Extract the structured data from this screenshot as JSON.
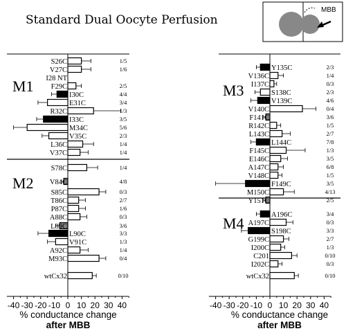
{
  "title": "Standard Dual Oocyte Perfusion",
  "inset": {
    "label": "MBB"
  },
  "colors": {
    "black": "#000000",
    "white": "#ffffff",
    "gray": "#7f7f7f",
    "bar_hatched": "#ffffff"
  },
  "chart_data": [
    {
      "type": "bar",
      "orientation": "horizontal",
      "panel": "left",
      "xlim": [
        -45,
        45
      ],
      "xticks": [
        -40,
        -30,
        -20,
        -10,
        0,
        10,
        20,
        30,
        40
      ],
      "xlabel": "% conductance change",
      "xlabel_line2": "after MBB",
      "segments": [
        "M1",
        "M2"
      ],
      "rows": [
        {
          "label": "S26C",
          "value": 10,
          "err": 7,
          "fill": "white",
          "frac": "1/5"
        },
        {
          "label": "V27C",
          "value": 10,
          "err": 7,
          "fill": "white",
          "frac": "1/6"
        },
        {
          "label": "I28 NT",
          "value": null,
          "err": null,
          "fill": "none",
          "frac": ""
        },
        {
          "label": "F29C",
          "value": 6,
          "err": 4,
          "fill": "white",
          "frac": "2/5"
        },
        {
          "label": "I30C",
          "value": -8,
          "err": 4,
          "fill": "black",
          "frac": "4/4"
        },
        {
          "label": "E31C",
          "value": -15,
          "err": 7,
          "fill": "white",
          "frac": "3/4"
        },
        {
          "label": "R32C",
          "value": 19,
          "err": 20,
          "fill": "white",
          "frac": "1/3"
        },
        {
          "label": "I33C",
          "value": -18,
          "err": 5,
          "fill": "black",
          "frac": "3/5"
        },
        {
          "label": "M34C",
          "value": -30,
          "err": 10,
          "fill": "white",
          "frac": "5/6"
        },
        {
          "label": "V35C",
          "value": -14,
          "err": 5,
          "fill": "white",
          "frac": "2/3"
        },
        {
          "label": "L36C",
          "value": 11,
          "err": 8,
          "fill": "white",
          "frac": "1/4"
        },
        {
          "label": "V37C",
          "value": 9,
          "err": 6,
          "fill": "white",
          "frac": "1/4"
        },
        {
          "label": "S78C",
          "value": 14,
          "err": 8,
          "fill": "white",
          "frac": "1/4"
        },
        {
          "label": "V84C",
          "value": -3,
          "err": 2,
          "fill": "gray",
          "frac": "4/8"
        },
        {
          "label": "S85C",
          "value": 23,
          "err": 5,
          "fill": "white",
          "frac": "0/3"
        },
        {
          "label": "T86C",
          "value": 8,
          "err": 5,
          "fill": "white",
          "frac": "2/7"
        },
        {
          "label": "P87C",
          "value": 8,
          "err": 5,
          "fill": "white",
          "frac": "1/6"
        },
        {
          "label": "A88C",
          "value": 9,
          "err": 5,
          "fill": "white",
          "frac": "0/3"
        },
        {
          "label": "L89C",
          "value": -6,
          "err": 3,
          "fill": "gray",
          "frac": "3/6"
        },
        {
          "label": "L90C",
          "value": -14,
          "err": 8,
          "fill": "black",
          "frac": "3/3"
        },
        {
          "label": "V91C",
          "value": -9,
          "err": 6,
          "fill": "white",
          "frac": "1/3"
        },
        {
          "label": "A92C",
          "value": 9,
          "err": 6,
          "fill": "white",
          "frac": "1/4"
        },
        {
          "label": "M93C",
          "value": 23,
          "err": 5,
          "fill": "white",
          "frac": "0/4"
        },
        {
          "label": "wtCx32",
          "value": 18,
          "err": 3,
          "fill": "white",
          "frac": "0/10"
        }
      ]
    },
    {
      "type": "bar",
      "orientation": "horizontal",
      "panel": "right",
      "xlim": [
        -45,
        45
      ],
      "xticks": [
        -40,
        -30,
        -20,
        -10,
        0,
        10,
        20,
        30,
        40
      ],
      "xlabel": "% conductance change",
      "xlabel_line2": "after MBB",
      "segments": [
        "M3",
        "M4"
      ],
      "rows": [
        {
          "label": "Y135C",
          "value": -7,
          "err": 3,
          "fill": "black",
          "frac": "2/3"
        },
        {
          "label": "V136C",
          "value": 6,
          "err": 4,
          "fill": "white",
          "frac": "1/4"
        },
        {
          "label": "I137C",
          "value": 3,
          "err": 2,
          "fill": "white",
          "frac": "0/3"
        },
        {
          "label": "S138C",
          "value": -7,
          "err": 4,
          "fill": "white",
          "frac": "2/3"
        },
        {
          "label": "V139C",
          "value": -9,
          "err": 5,
          "fill": "black",
          "frac": "4/6"
        },
        {
          "label": "V140C",
          "value": 24,
          "err": 10,
          "fill": "white",
          "frac": "0/4"
        },
        {
          "label": "F141C",
          "value": -3,
          "err": 2,
          "fill": "gray",
          "frac": "3/6"
        },
        {
          "label": "R142C",
          "value": 5,
          "err": 3,
          "fill": "white",
          "frac": "1/5"
        },
        {
          "label": "L143C",
          "value": 9,
          "err": 6,
          "fill": "white",
          "frac": "2/7"
        },
        {
          "label": "L144C",
          "value": -10,
          "err": 4,
          "fill": "black",
          "frac": "7/8"
        },
        {
          "label": "F145C",
          "value": 12,
          "err": 14,
          "fill": "white",
          "frac": "1/3"
        },
        {
          "label": "E146C",
          "value": 8,
          "err": 5,
          "fill": "white",
          "frac": "3/5"
        },
        {
          "label": "A147C",
          "value": 6,
          "err": 4,
          "fill": "white",
          "frac": "6/8"
        },
        {
          "label": "V148C",
          "value": 6,
          "err": 3,
          "fill": "white",
          "frac": "1/5"
        },
        {
          "label": "F149C",
          "value": -18,
          "err": 22,
          "fill": "black",
          "frac": "3/5"
        },
        {
          "label": "M150C",
          "value": 10,
          "err": 8,
          "fill": "white",
          "frac": "4/13"
        },
        {
          "label": "Y151C",
          "value": -3,
          "err": 2,
          "fill": "gray",
          "frac": "2/5"
        },
        {
          "label": "A196C",
          "value": -7,
          "err": 3,
          "fill": "black",
          "frac": "3/4"
        },
        {
          "label": "A197C",
          "value": 12,
          "err": 5,
          "fill": "white",
          "frac": "0/3"
        },
        {
          "label": "S198C",
          "value": -16,
          "err": 5,
          "fill": "black",
          "frac": "3/3"
        },
        {
          "label": "G199C",
          "value": 10,
          "err": 4,
          "fill": "white",
          "frac": "2/7"
        },
        {
          "label": "I200C",
          "value": 8,
          "err": 3,
          "fill": "white",
          "frac": "1/3"
        },
        {
          "label": "C201",
          "value": 16,
          "err": 4,
          "fill": "white",
          "frac": "0/10"
        },
        {
          "label": "I202C",
          "value": 6,
          "err": 3,
          "fill": "white",
          "frac": "0/3"
        },
        {
          "label": "wtCx32",
          "value": 18,
          "err": 3,
          "fill": "white",
          "frac": "0/10"
        }
      ]
    }
  ]
}
